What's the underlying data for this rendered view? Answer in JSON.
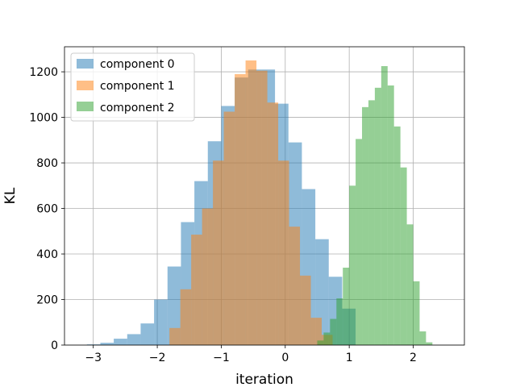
{
  "chart_data": {
    "type": "bar",
    "title": "",
    "xlabel": "iteration",
    "ylabel": "KL",
    "xlim": [
      -3.45,
      2.8
    ],
    "ylim": [
      0,
      1310
    ],
    "xticks": [
      -3,
      -2,
      -1,
      0,
      1,
      2
    ],
    "yticks": [
      0,
      200,
      400,
      600,
      800,
      1000,
      1200
    ],
    "xtick_labels": [
      "−3",
      "−2",
      "−1",
      "0",
      "1",
      "2"
    ],
    "ytick_labels": [
      "0",
      "200",
      "400",
      "600",
      "800",
      "1000",
      "1200"
    ],
    "grid": true,
    "legend_position": "top-left",
    "series": [
      {
        "name": "component 0",
        "color": "#1f77b4",
        "opacity": 0.5,
        "bin_edges": [
          -3.1,
          -2.89,
          -2.68,
          -2.47,
          -2.26,
          -2.05,
          -1.84,
          -1.63,
          -1.42,
          -1.21,
          -1.0,
          -0.79,
          -0.58,
          -0.37,
          -0.16,
          0.05,
          0.26,
          0.47,
          0.68,
          0.89,
          1.1
        ],
        "counts": [
          3,
          10,
          28,
          48,
          95,
          200,
          345,
          540,
          720,
          895,
          1050,
          1175,
          1210,
          1210,
          1060,
          890,
          685,
          465,
          300,
          160
        ]
      },
      {
        "name": "component 1",
        "color": "#ff7f0e",
        "opacity": 0.5,
        "bin_edges": [
          -1.81,
          -1.64,
          -1.47,
          -1.3,
          -1.13,
          -0.96,
          -0.79,
          -0.62,
          -0.45,
          -0.28,
          -0.11,
          0.06,
          0.23,
          0.4,
          0.57,
          0.74
        ],
        "counts": [
          75,
          245,
          485,
          600,
          810,
          1025,
          1190,
          1250,
          1205,
          1065,
          810,
          520,
          305,
          120,
          45
        ]
      },
      {
        "name": "component 2",
        "color": "#2ca02c",
        "opacity": 0.5,
        "bin_edges": [
          0.5,
          0.6,
          0.7,
          0.8,
          0.9,
          1.0,
          1.1,
          1.2,
          1.3,
          1.4,
          1.5,
          1.6,
          1.7,
          1.8,
          1.9,
          2.0,
          2.1,
          2.2,
          2.3
        ],
        "counts": [
          20,
          55,
          115,
          205,
          340,
          700,
          905,
          1045,
          1075,
          1130,
          1225,
          1140,
          960,
          780,
          530,
          280,
          60,
          12
        ]
      }
    ]
  }
}
